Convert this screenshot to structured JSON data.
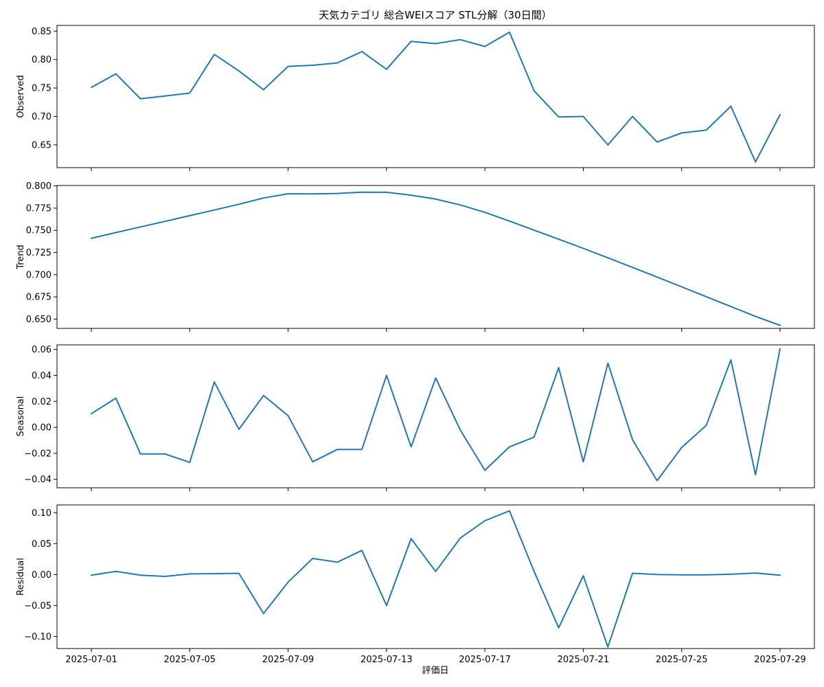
{
  "chart_data": {
    "type": "line",
    "title": "天気カテゴリ 総合WEIスコア STL分解（30日間）",
    "xlabel": "評価日",
    "line_color": "#1f77b4",
    "x": [
      "2025-07-01",
      "2025-07-02",
      "2025-07-03",
      "2025-07-04",
      "2025-07-05",
      "2025-07-06",
      "2025-07-07",
      "2025-07-08",
      "2025-07-09",
      "2025-07-10",
      "2025-07-11",
      "2025-07-12",
      "2025-07-13",
      "2025-07-14",
      "2025-07-15",
      "2025-07-16",
      "2025-07-17",
      "2025-07-18",
      "2025-07-19",
      "2025-07-20",
      "2025-07-21",
      "2025-07-22",
      "2025-07-23",
      "2025-07-24",
      "2025-07-25",
      "2025-07-26",
      "2025-07-27",
      "2025-07-28",
      "2025-07-29"
    ],
    "x_ticks": [
      "2025-07-01",
      "2025-07-05",
      "2025-07-09",
      "2025-07-13",
      "2025-07-17",
      "2025-07-21",
      "2025-07-25",
      "2025-07-29"
    ],
    "panels": [
      {
        "ylabel": "Observed",
        "ylim": [
          0.61,
          0.86
        ],
        "y_ticks": [
          "0.65",
          "0.70",
          "0.75",
          "0.80",
          "0.85"
        ],
        "values": [
          0.751,
          0.775,
          0.731,
          0.736,
          0.741,
          0.809,
          0.78,
          0.747,
          0.788,
          0.79,
          0.794,
          0.814,
          0.783,
          0.832,
          0.828,
          0.835,
          0.823,
          0.848,
          0.745,
          0.699,
          0.7,
          0.65,
          0.7,
          0.655,
          0.671,
          0.676,
          0.718,
          0.62,
          0.703
        ]
      },
      {
        "ylabel": "Trend",
        "ylim": [
          0.6395,
          0.8005
        ],
        "y_ticks": [
          "0.650",
          "0.675",
          "0.700",
          "0.725",
          "0.750",
          "0.775",
          "0.800"
        ],
        "values": [
          0.741,
          0.7475,
          0.7538,
          0.7601,
          0.7665,
          0.7729,
          0.7794,
          0.7864,
          0.7912,
          0.791,
          0.7915,
          0.793,
          0.7928,
          0.7896,
          0.7852,
          0.7786,
          0.7702,
          0.7604,
          0.7501,
          0.74,
          0.7297,
          0.719,
          0.7082,
          0.6973,
          0.6863,
          0.6752,
          0.6641,
          0.653,
          0.643
        ]
      },
      {
        "ylabel": "Seasonal",
        "ylim": [
          -0.0465,
          0.0635
        ],
        "y_ticks": [
          "−0.04",
          "−0.02",
          "0.00",
          "0.02",
          "0.04",
          "0.06"
        ],
        "values": [
          0.0105,
          0.0225,
          -0.0205,
          -0.0205,
          -0.027,
          0.035,
          -0.0015,
          0.0245,
          0.009,
          -0.0265,
          -0.017,
          -0.017,
          0.04,
          -0.015,
          0.038,
          -0.002,
          -0.033,
          -0.015,
          -0.0075,
          0.046,
          -0.0265,
          0.0495,
          -0.0095,
          -0.041,
          -0.0155,
          0.0015,
          0.052,
          -0.0365,
          0.0605
        ]
      },
      {
        "ylabel": "Residual",
        "ylim": [
          -0.1195,
          0.1125
        ],
        "y_ticks": [
          "−0.10",
          "−0.05",
          "0.00",
          "0.05",
          "0.10"
        ],
        "values": [
          -0.001,
          0.005,
          -0.001,
          -0.003,
          0.001,
          0.0015,
          0.002,
          -0.063,
          -0.012,
          0.026,
          0.02,
          0.039,
          -0.05,
          0.058,
          0.005,
          0.059,
          0.087,
          0.103,
          0.005,
          -0.086,
          -0.002,
          -0.117,
          0.002,
          0.0,
          -0.0005,
          -0.0005,
          0.0005,
          0.0025,
          -0.001
        ]
      }
    ]
  }
}
